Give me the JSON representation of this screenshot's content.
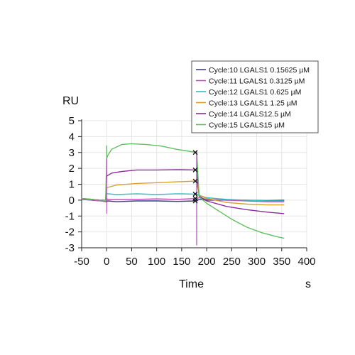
{
  "chart_data": {
    "type": "line",
    "ylabel": "RU",
    "xlabel": "Time",
    "xunit": "s",
    "xlim": [
      -50,
      400
    ],
    "ylim": [
      -3,
      5
    ],
    "xticks": [
      -50,
      0,
      50,
      100,
      150,
      200,
      250,
      300,
      350,
      400
    ],
    "yticks": [
      -3,
      -2,
      -1,
      0,
      1,
      2,
      3,
      4,
      5
    ],
    "grid": true,
    "legend_position": "top-right",
    "injection_markers_x": [
      0,
      180
    ],
    "series": [
      {
        "name": "Cycle:10 LGALS1 0.15625 µM",
        "color": "#3c3c9c",
        "points": [
          [
            -50,
            0.05
          ],
          [
            -30,
            0
          ],
          [
            -10,
            -0.05
          ],
          [
            -2,
            -0.1
          ],
          [
            0,
            -0.1
          ],
          [
            2,
            -0.05
          ],
          [
            20,
            -0.1
          ],
          [
            60,
            -0.05
          ],
          [
            100,
            -0.05
          ],
          [
            140,
            -0.08
          ],
          [
            180,
            -0.05
          ],
          [
            185,
            0.05
          ],
          [
            200,
            0.0
          ],
          [
            240,
            0.0
          ],
          [
            280,
            0.0
          ],
          [
            320,
            -0.03
          ],
          [
            355,
            0.0
          ]
        ]
      },
      {
        "name": "Cycle:11 LGALS1 0.3125 µM",
        "color": "#c050b8",
        "points": [
          [
            -50,
            0.05
          ],
          [
            -30,
            0
          ],
          [
            -10,
            -0.05
          ],
          [
            -2,
            -0.1
          ],
          [
            0,
            0.1
          ],
          [
            2,
            0.05
          ],
          [
            20,
            0.05
          ],
          [
            60,
            0.05
          ],
          [
            100,
            0.08
          ],
          [
            140,
            0.05
          ],
          [
            180,
            0.1
          ],
          [
            185,
            0.15
          ],
          [
            200,
            0.05
          ],
          [
            240,
            0.0
          ],
          [
            280,
            -0.05
          ],
          [
            320,
            -0.1
          ],
          [
            355,
            -0.1
          ]
        ]
      },
      {
        "name": "Cycle:12 LGALS1 0.625 µM",
        "color": "#30c0c0",
        "points": [
          [
            -50,
            0.1
          ],
          [
            -30,
            0.05
          ],
          [
            -10,
            0
          ],
          [
            -2,
            0.0
          ],
          [
            0,
            0.4
          ],
          [
            2,
            0.4
          ],
          [
            20,
            0.35
          ],
          [
            60,
            0.4
          ],
          [
            100,
            0.35
          ],
          [
            140,
            0.4
          ],
          [
            180,
            0.38
          ],
          [
            185,
            0.3
          ],
          [
            200,
            0.15
          ],
          [
            240,
            0.05
          ],
          [
            280,
            0.0
          ],
          [
            320,
            -0.05
          ],
          [
            355,
            -0.05
          ]
        ]
      },
      {
        "name": "Cycle:13 LGALS1 1.25 µM",
        "color": "#d8a030",
        "points": [
          [
            -50,
            0.1
          ],
          [
            -30,
            0.05
          ],
          [
            -10,
            0
          ],
          [
            -2,
            0.0
          ],
          [
            0,
            0.75
          ],
          [
            2,
            0.8
          ],
          [
            20,
            0.95
          ],
          [
            60,
            1.05
          ],
          [
            100,
            1.1
          ],
          [
            140,
            1.15
          ],
          [
            180,
            1.2
          ],
          [
            185,
            0.3
          ],
          [
            200,
            0.1
          ],
          [
            240,
            -0.15
          ],
          [
            280,
            -0.25
          ],
          [
            320,
            -0.3
          ],
          [
            355,
            -0.3
          ]
        ]
      },
      {
        "name": "Cycle:14 LGALS12.5 µM",
        "color": "#8a2a9a",
        "points": [
          [
            -50,
            0.1
          ],
          [
            -30,
            0.05
          ],
          [
            -10,
            0
          ],
          [
            -2,
            0.0
          ],
          [
            0,
            1.5
          ],
          [
            2,
            1.55
          ],
          [
            10,
            1.7
          ],
          [
            30,
            1.8
          ],
          [
            60,
            1.9
          ],
          [
            100,
            1.9
          ],
          [
            140,
            1.92
          ],
          [
            180,
            1.9
          ],
          [
            185,
            0.25
          ],
          [
            200,
            -0.05
          ],
          [
            240,
            -0.4
          ],
          [
            280,
            -0.6
          ],
          [
            320,
            -0.75
          ],
          [
            355,
            -0.85
          ]
        ]
      },
      {
        "name": "Cycle:15 LGALS15 µM",
        "color": "#60c060",
        "points": [
          [
            -50,
            0.1
          ],
          [
            -30,
            0.05
          ],
          [
            -10,
            0
          ],
          [
            -2,
            0.0
          ],
          [
            0,
            2.6
          ],
          [
            2,
            2.8
          ],
          [
            10,
            3.2
          ],
          [
            30,
            3.5
          ],
          [
            50,
            3.55
          ],
          [
            80,
            3.5
          ],
          [
            110,
            3.4
          ],
          [
            140,
            3.2
          ],
          [
            160,
            3.1
          ],
          [
            180,
            3.0
          ],
          [
            185,
            0.2
          ],
          [
            200,
            -0.2
          ],
          [
            220,
            -0.6
          ],
          [
            250,
            -1.2
          ],
          [
            280,
            -1.7
          ],
          [
            310,
            -2.05
          ],
          [
            340,
            -2.3
          ],
          [
            355,
            -2.4
          ]
        ]
      }
    ]
  }
}
